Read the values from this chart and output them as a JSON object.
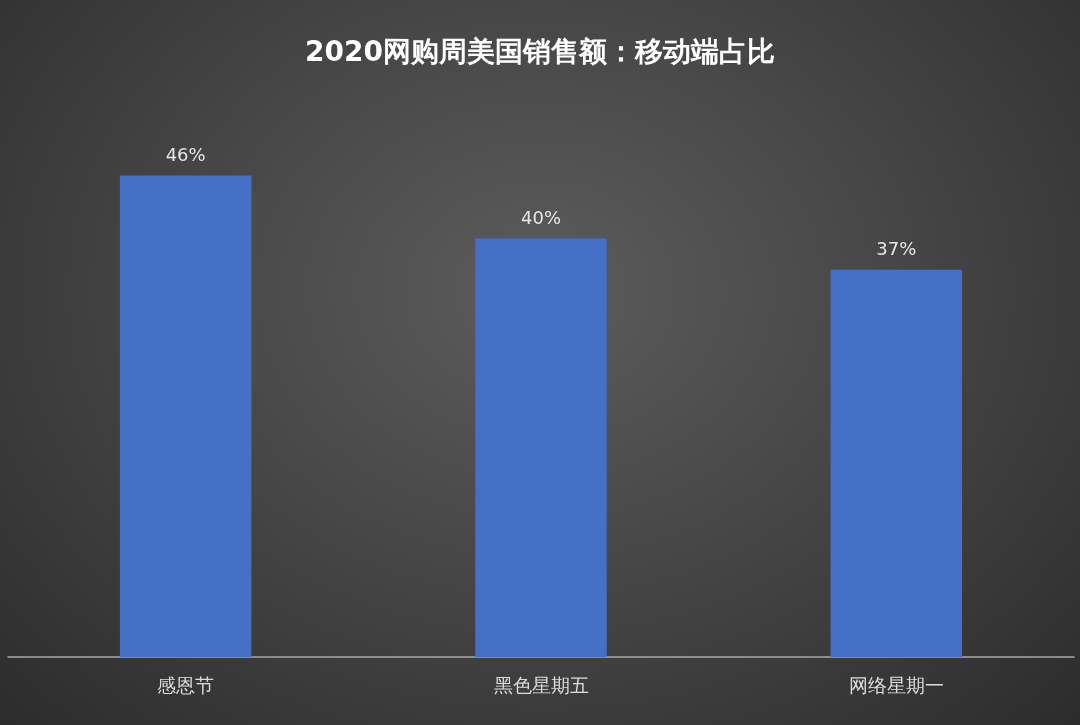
{
  "chart_data": {
    "type": "bar",
    "title": "2020网购周美国销售额：移动端占比",
    "categories": [
      "感恩节",
      "黑色星期五",
      "网络星期一"
    ],
    "values": [
      46,
      40,
      37
    ],
    "value_labels": [
      "46%",
      "40%",
      "37%"
    ],
    "color": "#4470c6"
  }
}
